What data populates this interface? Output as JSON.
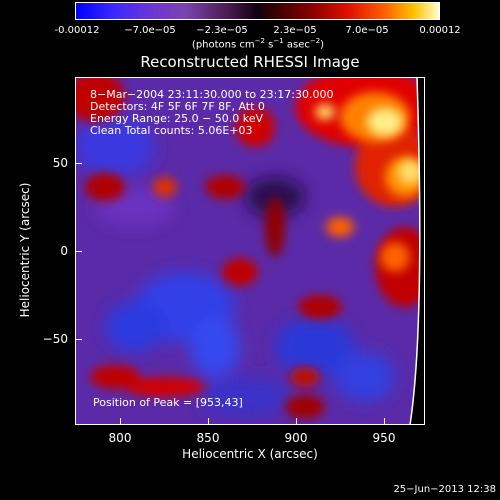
{
  "colorbar": {
    "tick_labels": [
      "-0.00012",
      "−7.0e−05",
      "−2.3e−05",
      "2.3e−05",
      "7.0e−05",
      "0.00012"
    ],
    "units_prefix": "(photons cm",
    "units_exp1": "−2",
    "units_mid": " s",
    "units_exp2": "−1",
    "units_mid2": " asec",
    "units_exp3": "−2",
    "units_suffix": ")"
  },
  "title": "Reconstructed RHESSI Image",
  "annotations": {
    "time_range": "8−Mar−2004 23:11:30.000 to 23:17:30.000",
    "detectors": "Detectors: 4F 5F 6F 7F 8F, Att 0",
    "energy": "Energy Range: 25.0 − 50.0 keV",
    "clean": "Clean    Total counts: 5.06E+03",
    "peak": "Position of Peak = [953,43]"
  },
  "axes": {
    "xlabel": "Heliocentric X (arcsec)",
    "ylabel": "Heliocentric Y (arcsec)",
    "xticks": [
      "800",
      "850",
      "900",
      "950"
    ],
    "yticks": [
      "50",
      "0",
      "−50"
    ]
  },
  "footer": {
    "date": "25−Jun−2013 12:38"
  },
  "colors": {
    "background": "#000000",
    "foreground": "#ffffff"
  }
}
